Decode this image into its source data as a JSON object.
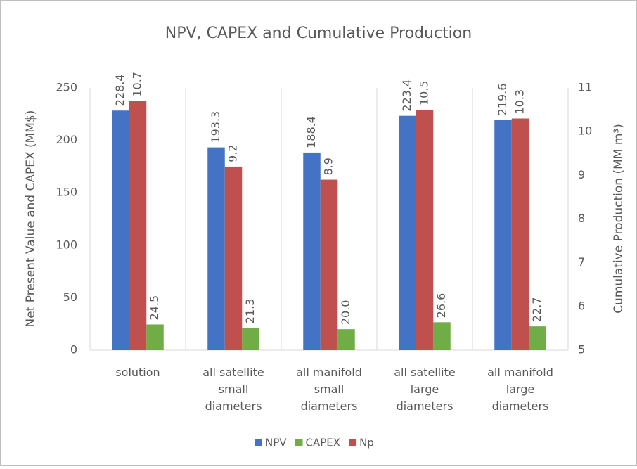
{
  "chart_data": {
    "type": "bar",
    "title": "NPV, CAPEX and Cumulative Production",
    "y_label": "Net Present Value and CAPEX (MM$)",
    "y2_label": "Cumulative Production (MM m³)",
    "categories": [
      "solution",
      "all satellite small diameters",
      "all manifold small diameters",
      "all satellite large diameters",
      "all manifold large diameters"
    ],
    "series": [
      {
        "name": "NPV",
        "color": "#4472c4",
        "values": [
          228.4,
          193.3,
          188.4,
          223.4,
          219.6
        ]
      },
      {
        "name": "CAPEX",
        "color": "#70ad47",
        "values": [
          24.5,
          21.3,
          20,
          26.6,
          22.7
        ],
        "value_labels": [
          "24.5",
          "21.3",
          "20.0",
          "26.6",
          "22.7"
        ]
      },
      {
        "name": "Np",
        "color": "#c0504d",
        "axis": "y2",
        "values": [
          10.7,
          9.2,
          8.9,
          10.5,
          10.3
        ]
      }
    ],
    "ylim": [
      0,
      250
    ],
    "yticks": [
      0,
      50,
      100,
      150,
      200,
      250
    ],
    "y2lim": [
      5,
      11
    ],
    "y2ticks": [
      5,
      6,
      7,
      8,
      9,
      10,
      11
    ],
    "legend": "bottom"
  }
}
